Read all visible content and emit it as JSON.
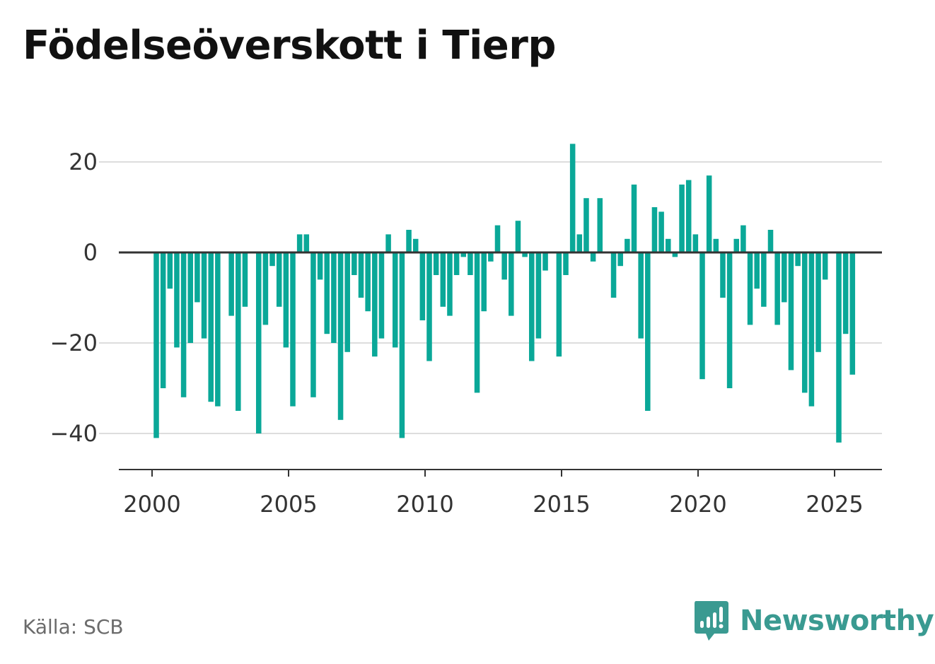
{
  "colors": {
    "bar": "#0aa898",
    "grid": "#dddddd",
    "axis": "#333333",
    "brand": "#3a9a91"
  },
  "source": "Källa: SCB",
  "brand": {
    "name": "Newsworthy",
    "icon": "newsworthy-logo-icon"
  },
  "chart_data": {
    "type": "bar",
    "title": "Födelseöverskott i Tierp",
    "xlabel": "",
    "ylabel": "",
    "grid": true,
    "ylim": [
      -48,
      28
    ],
    "xlim": [
      1998.8,
      2026.8
    ],
    "yticks": [
      20,
      0,
      -20,
      -40
    ],
    "ytick_labels": [
      "20",
      "0",
      "−20",
      "−40"
    ],
    "xticks": [
      2000,
      2005,
      2010,
      2015,
      2020,
      2025
    ],
    "xtick_labels": [
      "2000",
      "2005",
      "2010",
      "2015",
      "2020",
      "2025"
    ],
    "series": [
      {
        "start_year": 2000,
        "periods_per_year": 4,
        "values": [
          -41,
          -30,
          -8,
          -21,
          -32,
          -20,
          -11,
          -19,
          -33,
          -34,
          0,
          -14,
          -35,
          -12,
          0,
          -40,
          -16,
          -3,
          -12,
          -21,
          -34,
          4,
          4,
          -32,
          -6,
          -18,
          -20,
          -37,
          -22,
          -5,
          -10,
          -13,
          -23,
          -19,
          4,
          -21,
          -41,
          5,
          3,
          -15,
          -24,
          -5,
          -12,
          -14,
          -5,
          -1,
          -5,
          -31,
          -13,
          -2,
          6,
          -6,
          -14,
          7,
          -1,
          -24,
          -19,
          -4,
          0,
          -23,
          -5,
          24,
          4,
          12,
          -2,
          12,
          0,
          -10,
          -3,
          3,
          15,
          -19,
          -35,
          10,
          9,
          3,
          -1,
          15,
          16,
          4,
          -28,
          17,
          3,
          -10,
          -30,
          3,
          6,
          -16,
          -8,
          -12,
          5,
          -16,
          -11,
          -26,
          -3,
          -31,
          -34,
          -22,
          -6,
          0,
          -42,
          -18,
          -27
        ]
      }
    ]
  }
}
